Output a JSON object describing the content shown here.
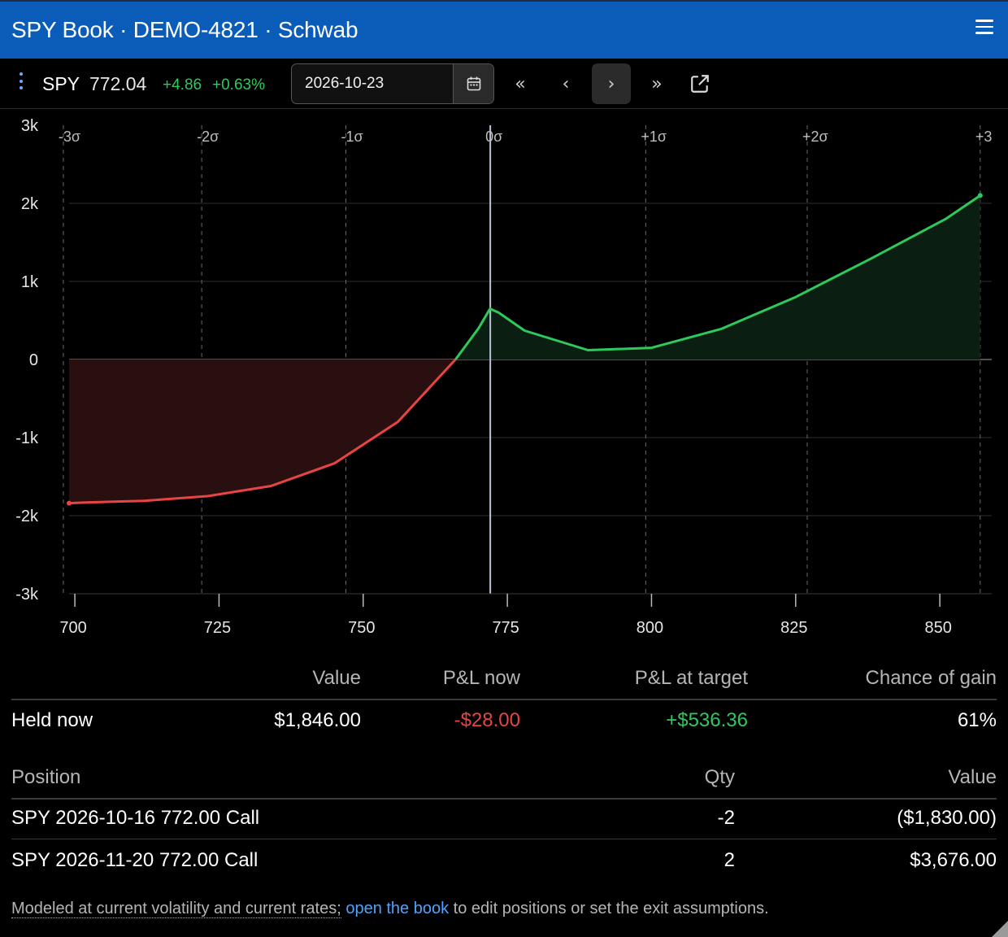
{
  "window": {
    "title": "SPY Book · DEMO-4821 · Schwab"
  },
  "quote": {
    "ticker": "SPY",
    "price": "772.04",
    "change": "+4.86",
    "change_pct": "+0.63%"
  },
  "date_field": {
    "value": "2026-10-23"
  },
  "nav": {
    "first": "«",
    "prev": "‹",
    "next": "›",
    "last": "»"
  },
  "icons": {
    "menu": "hamburger-icon",
    "kebab": "vertical-ellipsis-icon",
    "calendar": "calendar-icon",
    "external": "external-link-icon"
  },
  "colors": {
    "title_bar": "#0a5cb8",
    "gain": "#2ec95c",
    "loss": "#e84444",
    "link": "#4da3ff",
    "cursor_line": "#b9c2d6"
  },
  "chart_data": {
    "type": "area",
    "x": [
      699,
      702,
      712,
      723,
      734,
      745,
      756,
      766,
      770,
      772,
      773.5,
      778,
      789,
      800,
      812,
      825,
      838,
      851,
      857
    ],
    "y": [
      -1840,
      -1830,
      -1810,
      -1750,
      -1620,
      -1330,
      -800,
      0,
      400,
      650,
      600,
      370,
      120,
      150,
      390,
      800,
      1290,
      1800,
      2100
    ],
    "xlim": [
      699,
      859
    ],
    "ylim": [
      -3000,
      3000
    ],
    "x_ticks": [
      "700",
      "725",
      "750",
      "775",
      "800",
      "825",
      "850"
    ],
    "x_tick_values": [
      700,
      725,
      750,
      775,
      800,
      825,
      850
    ],
    "y_ticks": [
      "3k",
      "2k",
      "1k",
      "0",
      "-1k",
      "-2k",
      "-3k"
    ],
    "y_tick_values": [
      3000,
      2000,
      1000,
      0,
      -1000,
      -2000,
      -3000
    ],
    "sigma_labels": [
      "-3σ",
      "-2σ",
      "-1σ",
      "0σ",
      "+1σ",
      "+2σ",
      "+3"
    ],
    "sigma_values": [
      698,
      722,
      747,
      772.04,
      799,
      827,
      857
    ],
    "current_price": 772.04,
    "grid": true
  },
  "summary": {
    "headers": [
      "Value",
      "P&L now",
      "P&L at target",
      "Chance of gain"
    ],
    "row": {
      "label": "Held now",
      "value": "$1,846.00",
      "pnl_now": "-$28.00",
      "pnl_target": "+$536.36",
      "chance": "61%"
    }
  },
  "positions": {
    "headers": {
      "position": "Position",
      "qty": "Qty",
      "value": "Value"
    },
    "rows": [
      {
        "position": "SPY 2026-10-16 772.00 Call",
        "qty": "-2",
        "value": "($1,830.00)"
      },
      {
        "position": "SPY 2026-11-20 772.00 Call",
        "qty": "2",
        "value": "$3,676.00"
      }
    ]
  },
  "footnote": {
    "prefix": "Modeled at current volatility and current rates;",
    "link": "open the book",
    "suffix": "to edit positions or set the exit assumptions."
  }
}
